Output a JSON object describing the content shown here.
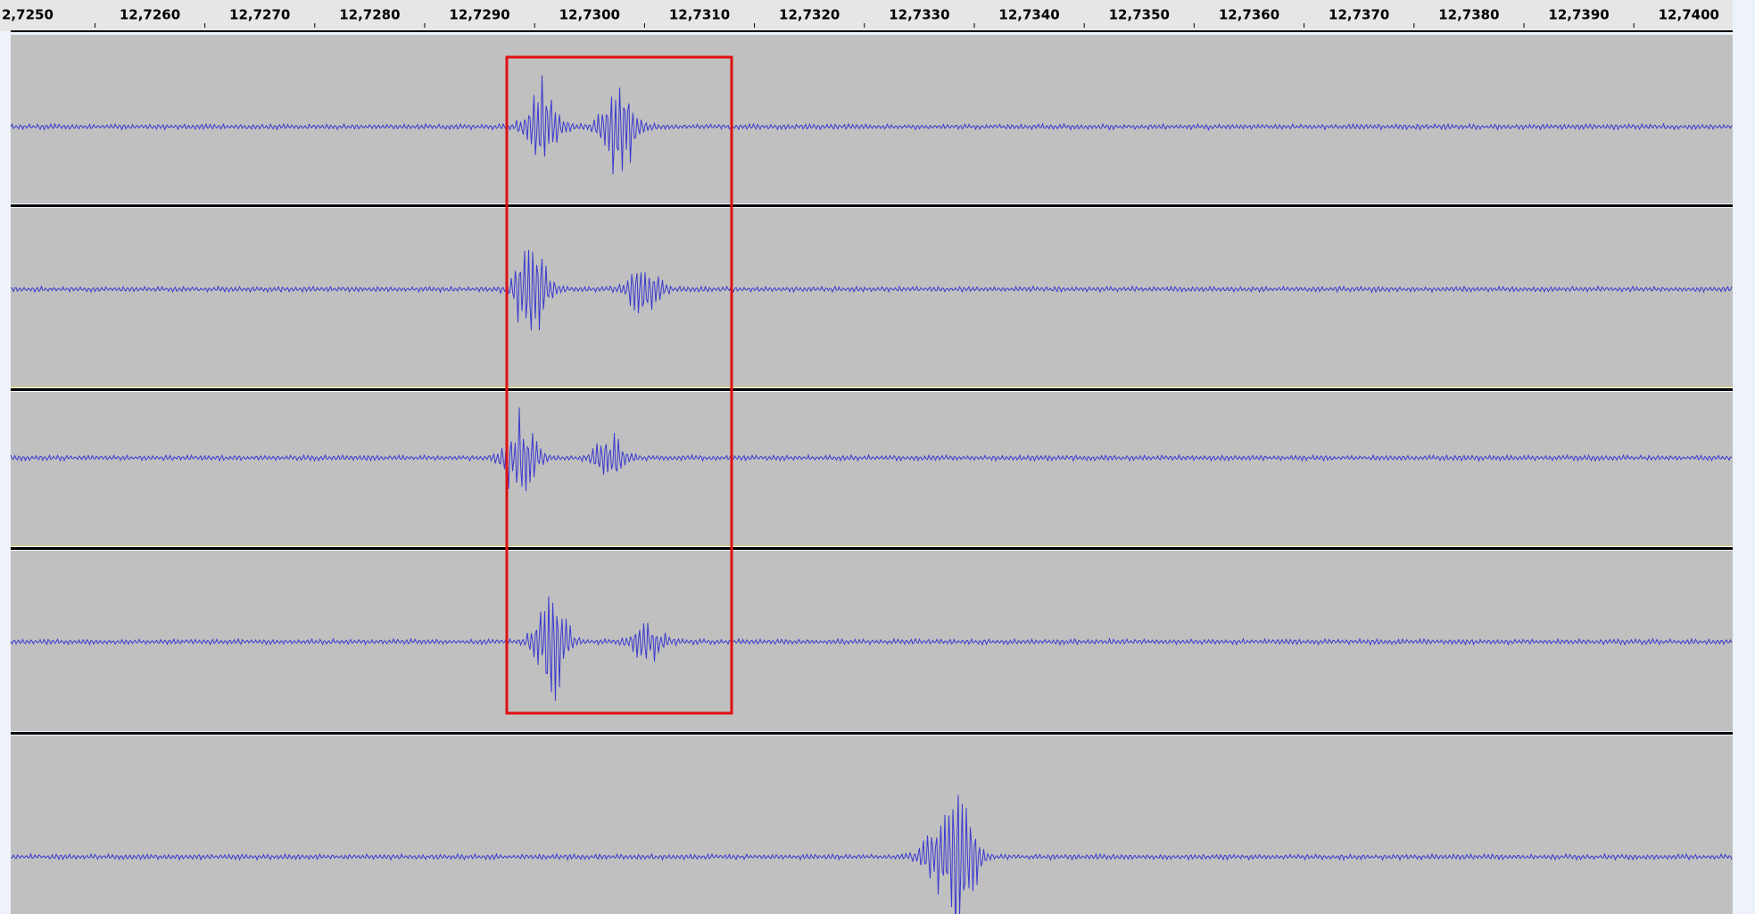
{
  "ruler": {
    "labels": [
      "2,7250",
      "12,7260",
      "12,7270",
      "12,7280",
      "12,7290",
      "12,7300",
      "12,7310",
      "12,7320",
      "12,7330",
      "12,7340",
      "12,7350",
      "12,7360",
      "12,7370",
      "12,7380",
      "12,7390",
      "12,7400"
    ]
  }
}
